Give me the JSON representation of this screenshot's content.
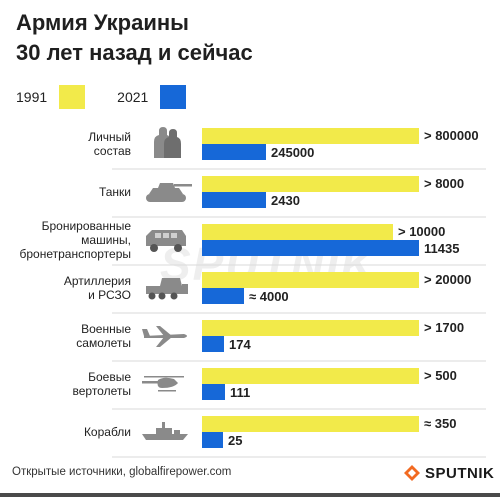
{
  "title_line1": "Армия Украины",
  "title_line2": "30 лет назад и сейчас",
  "footer": "Открытые источники, globalfirepower.com",
  "brand": "SPUTNIK",
  "watermark": "SPUTNIK",
  "colors": {
    "y1991": "#f2ea4a",
    "y2021": "#1668d8",
    "text": "#222222",
    "icon": "#8a8a8a"
  },
  "chart_data": {
    "type": "bar",
    "orientation": "horizontal",
    "scale": "nonlinear (display bars, not proportional)",
    "legend": [
      {
        "name": "1991",
        "color": "#f2ea4a"
      },
      {
        "name": "2021",
        "color": "#1668d8"
      }
    ],
    "categories": [
      {
        "label_lines": [
          "Личный",
          "состав"
        ],
        "icon": "soldiers-icon",
        "v1991": 800000,
        "v2021": 245000,
        "label1991": "> 800000",
        "label2021": "245000",
        "frac1991": 1.0,
        "frac2021": 0.295
      },
      {
        "label_lines": [
          "Танки"
        ],
        "icon": "tank-icon",
        "v1991": 8000,
        "v2021": 2430,
        "label1991": "> 8000",
        "label2021": "2430",
        "frac1991": 1.0,
        "frac2021": 0.295
      },
      {
        "label_lines": [
          "Бронированные",
          "машины,",
          "бронетранспортеры"
        ],
        "icon": "armored-vehicle-icon",
        "v1991": 10000,
        "v2021": 11435,
        "label1991": "> 10000",
        "label2021": "11435",
        "frac1991": 0.88,
        "frac2021": 1.0
      },
      {
        "label_lines": [
          "Артиллерия",
          "и РСЗО"
        ],
        "icon": "artillery-icon",
        "v1991": 20000,
        "v2021": 4000,
        "label1991": "> 20000",
        "label2021": "≈ 4000",
        "frac1991": 1.0,
        "frac2021": 0.195
      },
      {
        "label_lines": [
          "Военные",
          "самолеты"
        ],
        "icon": "plane-icon",
        "v1991": 1700,
        "v2021": 174,
        "label1991": "> 1700",
        "label2021": "174",
        "frac1991": 1.0,
        "frac2021": 0.1
      },
      {
        "label_lines": [
          "Боевые",
          "вертолеты"
        ],
        "icon": "helicopter-icon",
        "v1991": 500,
        "v2021": 111,
        "label1991": "> 500",
        "label2021": "111",
        "frac1991": 1.0,
        "frac2021": 0.105
      },
      {
        "label_lines": [
          "Корабли"
        ],
        "icon": "ship-icon",
        "v1991": 350,
        "v2021": 25,
        "label1991": "≈ 350",
        "label2021": "25",
        "frac1991": 1.0,
        "frac2021": 0.095
      }
    ]
  }
}
